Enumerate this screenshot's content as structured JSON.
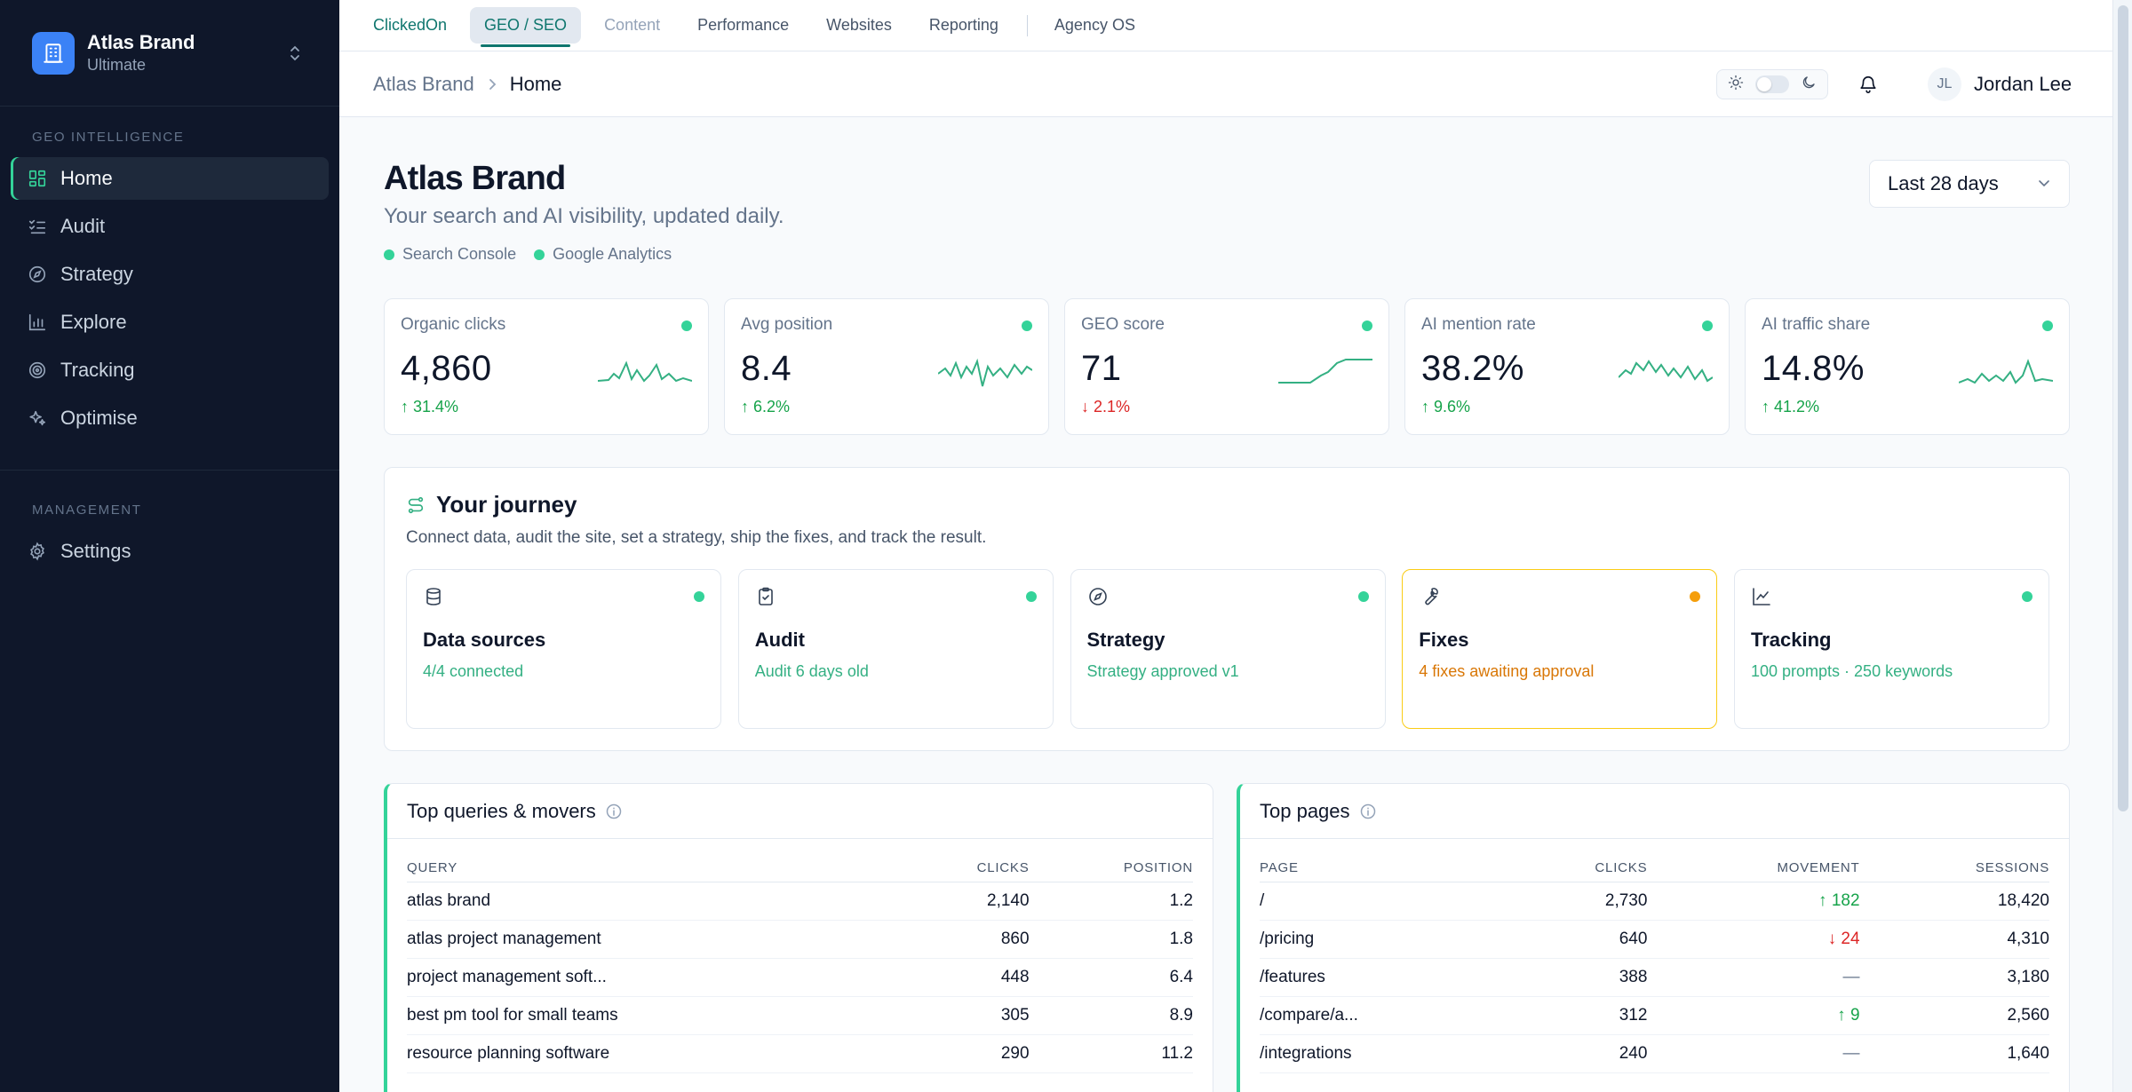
{
  "brand": {
    "name": "Atlas Brand",
    "plan": "Ultimate"
  },
  "sidebar": {
    "sections": [
      {
        "heading": "GEO INTELLIGENCE",
        "items": [
          {
            "label": "Home",
            "icon": "grid-icon",
            "active": true
          },
          {
            "label": "Audit",
            "icon": "checklist-icon"
          },
          {
            "label": "Strategy",
            "icon": "compass-icon"
          },
          {
            "label": "Explore",
            "icon": "bar-chart-icon"
          },
          {
            "label": "Tracking",
            "icon": "target-icon"
          },
          {
            "label": "Optimise",
            "icon": "sparkle-icon"
          }
        ]
      },
      {
        "heading": "MANAGEMENT",
        "items": [
          {
            "label": "Settings",
            "icon": "gear-icon"
          }
        ]
      }
    ]
  },
  "topnav": {
    "tabs": [
      {
        "label": "ClickedOn",
        "state": "brand"
      },
      {
        "label": "GEO / SEO",
        "state": "active"
      },
      {
        "label": "Content",
        "state": "disabled"
      },
      {
        "label": "Performance"
      },
      {
        "label": "Websites"
      },
      {
        "label": "Reporting"
      },
      {
        "label": "Agency OS"
      }
    ]
  },
  "breadcrumb": {
    "parent": "Atlas Brand",
    "current": "Home"
  },
  "user": {
    "initials": "JL",
    "name": "Jordan Lee"
  },
  "page": {
    "title": "Atlas Brand",
    "subtitle": "Your search and AI visibility, updated daily.",
    "sources": [
      "Search Console",
      "Google Analytics"
    ],
    "date_range": "Last 28 days"
  },
  "kpis": [
    {
      "label": "Organic clicks",
      "value": "4,860",
      "delta": "31.4%",
      "direction": "up",
      "status_color": "#34d399"
    },
    {
      "label": "Avg position",
      "value": "8.4",
      "delta": "6.2%",
      "direction": "up",
      "status_color": "#34d399"
    },
    {
      "label": "GEO score",
      "value": "71",
      "delta": "2.1%",
      "direction": "down",
      "status_color": "#34d399"
    },
    {
      "label": "AI mention rate",
      "value": "38.2%",
      "delta": "9.6%",
      "direction": "up",
      "status_color": "#34d399"
    },
    {
      "label": "AI traffic share",
      "value": "14.8%",
      "delta": "41.2%",
      "direction": "up",
      "status_color": "#34d399"
    }
  ],
  "journey": {
    "title": "Your journey",
    "description": "Connect data, audit the site, set a strategy, ship the fixes, and track the result.",
    "steps": [
      {
        "title": "Data sources",
        "status": "4/4 connected",
        "icon": "database-icon",
        "state": "ok"
      },
      {
        "title": "Audit",
        "status": "Audit 6 days old",
        "icon": "clipboard-icon",
        "state": "ok"
      },
      {
        "title": "Strategy",
        "status": "Strategy approved v1",
        "icon": "compass-icon",
        "state": "ok"
      },
      {
        "title": "Fixes",
        "status": "4 fixes awaiting approval",
        "icon": "wrench-icon",
        "state": "warn"
      },
      {
        "title": "Tracking",
        "status": "100 prompts · 250 keywords",
        "icon": "line-chart-icon",
        "state": "ok"
      }
    ]
  },
  "top_queries": {
    "title": "Top queries & movers",
    "columns": [
      "QUERY",
      "CLICKS",
      "POSITION"
    ],
    "rows": [
      [
        "atlas brand",
        "2,140",
        "1.2"
      ],
      [
        "atlas project management",
        "860",
        "1.8"
      ],
      [
        "project management soft...",
        "448",
        "6.4"
      ],
      [
        "best pm tool for small teams",
        "305",
        "8.9"
      ],
      [
        "resource planning software",
        "290",
        "11.2"
      ]
    ]
  },
  "top_pages": {
    "title": "Top pages",
    "columns": [
      "PAGE",
      "CLICKS",
      "MOVEMENT",
      "SESSIONS"
    ],
    "rows": [
      {
        "page": "/",
        "clicks": "2,730",
        "movement": "182",
        "direction": "up",
        "sessions": "18,420"
      },
      {
        "page": "/pricing",
        "clicks": "640",
        "movement": "24",
        "direction": "down",
        "sessions": "4,310"
      },
      {
        "page": "/features",
        "clicks": "388",
        "movement": "—",
        "direction": "flat",
        "sessions": "3,180"
      },
      {
        "page": "/compare/a...",
        "clicks": "312",
        "movement": "9",
        "direction": "up",
        "sessions": "2,560"
      },
      {
        "page": "/integrations",
        "clicks": "240",
        "movement": "—",
        "direction": "flat",
        "sessions": "1,640"
      }
    ]
  },
  "colors": {
    "accent": "#34d399",
    "warning": "#f59e0b",
    "positive": "#16a34a",
    "negative": "#dc2626",
    "sidebar_bg": "#0f172a"
  }
}
